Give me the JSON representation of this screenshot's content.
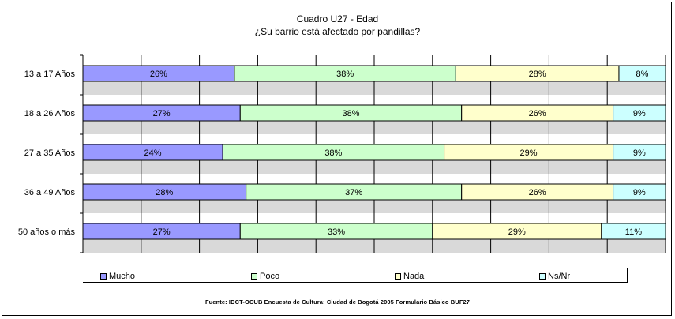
{
  "chart_data": {
    "type": "bar",
    "orientation": "horizontal",
    "stacked": true,
    "title": "Cuadro U27 - Edad",
    "subtitle": "¿Su barrio está afectado por pandillas?",
    "categories": [
      "13 a 17 Años",
      "18 a 26 Años",
      "27 a 35 Años",
      "36 a 49 Años",
      "50 años o más"
    ],
    "series": [
      {
        "name": "Mucho",
        "color": "#9999ff",
        "values": [
          26,
          27,
          24,
          28,
          27
        ]
      },
      {
        "name": "Poco",
        "color": "#ccffcc",
        "values": [
          38,
          38,
          38,
          37,
          33
        ]
      },
      {
        "name": "Nada",
        "color": "#ffffcc",
        "values": [
          28,
          26,
          29,
          26,
          29
        ]
      },
      {
        "name": "Ns/Nr",
        "color": "#ccffff",
        "values": [
          8,
          9,
          9,
          9,
          11
        ]
      }
    ],
    "legend_position": "bottom",
    "grid": true
  },
  "source_note": "Fuente: IDCT-OCUB Encuesta de Cultura: Ciudad de Bogotá 2005 Formulario Básico BUF27",
  "colors": {
    "band_gray": "#d9d9d9",
    "band_white": "#ffffff",
    "grid": "#000000"
  }
}
